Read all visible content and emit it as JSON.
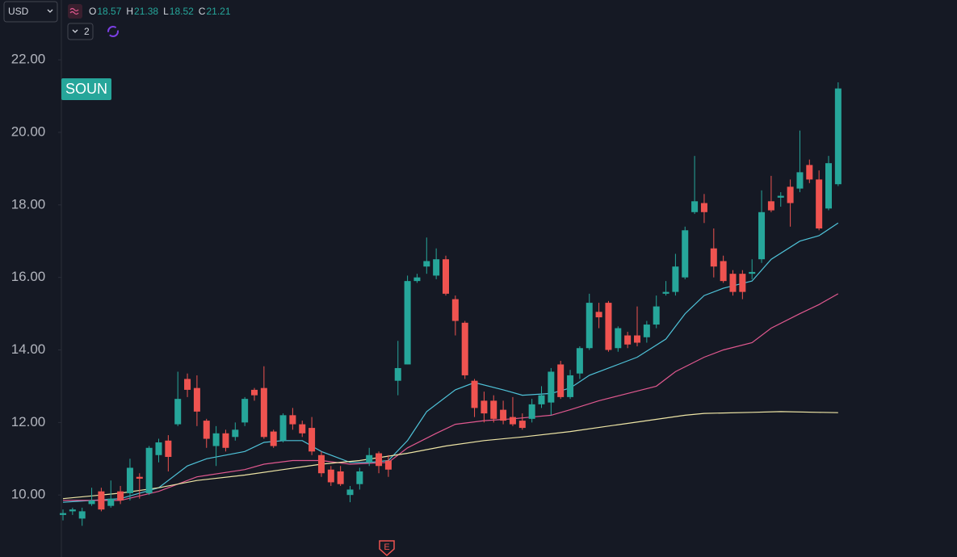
{
  "chart_data": {
    "type": "candlestick",
    "currency": "USD",
    "symbol": "SOUN",
    "ohlc_labels": [
      "O",
      "H",
      "L",
      "C"
    ],
    "indicator_count": 2,
    "earnings_marker": "E",
    "up_color": "#26a69a",
    "down_color": "#ef5350",
    "ylim": [
      8.29,
      23.65
    ],
    "yticks": [
      {
        "value": 10,
        "label": "10.00"
      },
      {
        "value": 12,
        "label": "12.00"
      },
      {
        "value": 14,
        "label": "14.00"
      },
      {
        "value": 16,
        "label": "16.00"
      },
      {
        "value": 18,
        "label": "18.00"
      },
      {
        "value": 20,
        "label": "20.00"
      },
      {
        "value": 22,
        "label": "22.00"
      }
    ],
    "open": [
      9.45,
      9.55,
      9.35,
      9.75,
      10.1,
      9.7,
      10.1,
      10.05,
      10.5,
      10.05,
      11.1,
      11.5,
      11.95,
      13.2,
      12.95,
      12.05,
      11.35,
      11.7,
      11.6,
      12.0,
      12.9,
      12.95,
      11.75,
      11.5,
      12.2,
      11.95,
      11.85,
      11.1,
      10.7,
      10.65,
      10.0,
      10.3,
      10.9,
      11.15,
      10.95,
      13.15,
      13.6,
      15.9,
      16.3,
      16.05,
      16.5,
      15.4,
      14.75,
      13.15,
      12.6,
      12.6,
      12.35,
      12.15,
      12.05,
      12.1,
      12.5,
      12.55,
      13.6,
      12.7,
      13.35,
      14.05,
      15.05,
      15.3,
      14.05,
      14.4,
      14.4,
      14.35,
      14.7,
      15.55,
      15.6,
      16.0,
      17.8,
      18.05,
      16.8,
      16.45,
      16.1,
      16.1,
      16.1,
      16.5,
      18.1,
      18.2,
      18.5,
      18.45,
      19.1,
      18.7,
      17.9,
      18.57
    ],
    "high": [
      9.6,
      9.65,
      9.65,
      10.2,
      10.2,
      10.4,
      10.25,
      11.0,
      10.6,
      11.35,
      11.55,
      11.65,
      13.4,
      13.35,
      13.3,
      12.1,
      11.9,
      11.8,
      12.0,
      12.7,
      12.95,
      13.55,
      11.8,
      12.25,
      12.4,
      12.05,
      12.15,
      11.2,
      10.8,
      10.8,
      10.25,
      10.75,
      11.3,
      11.2,
      11.1,
      14.25,
      16.05,
      16.1,
      17.1,
      16.8,
      16.6,
      15.5,
      14.8,
      13.2,
      12.85,
      12.75,
      12.6,
      12.7,
      12.25,
      12.65,
      13.0,
      13.5,
      13.7,
      13.45,
      14.1,
      15.55,
      15.3,
      15.35,
      14.65,
      14.5,
      15.2,
      14.8,
      15.5,
      15.9,
      16.65,
      17.4,
      19.35,
      18.3,
      17.35,
      16.6,
      16.2,
      16.2,
      16.5,
      18.4,
      18.8,
      18.35,
      18.7,
      20.05,
      19.25,
      18.95,
      19.35,
      21.38
    ],
    "low": [
      9.3,
      9.45,
      9.15,
      9.7,
      9.55,
      9.65,
      9.75,
      9.85,
      9.9,
      10.0,
      10.9,
      10.65,
      11.9,
      12.7,
      11.9,
      11.3,
      10.8,
      11.2,
      11.5,
      11.9,
      12.6,
      11.55,
      11.3,
      11.45,
      11.8,
      11.6,
      11.1,
      10.5,
      10.25,
      10.25,
      9.8,
      10.15,
      10.8,
      10.6,
      10.5,
      12.75,
      13.6,
      15.85,
      16.1,
      15.95,
      15.5,
      14.4,
      13.2,
      12.15,
      12.0,
      12.0,
      11.95,
      11.9,
      11.8,
      12.0,
      12.4,
      12.2,
      12.65,
      12.65,
      13.2,
      14.0,
      14.6,
      13.95,
      13.95,
      14.05,
      14.1,
      14.2,
      14.6,
      15.5,
      15.5,
      15.95,
      17.75,
      17.5,
      16.0,
      15.85,
      15.5,
      15.4,
      15.95,
      16.4,
      17.8,
      17.95,
      17.4,
      18.35,
      18.6,
      17.3,
      17.85,
      18.52
    ],
    "close": [
      9.5,
      9.6,
      9.55,
      9.85,
      9.6,
      9.9,
      9.85,
      10.75,
      10.45,
      11.3,
      11.45,
      11.05,
      12.65,
      12.9,
      12.3,
      11.55,
      11.7,
      11.3,
      11.8,
      12.65,
      12.75,
      11.6,
      11.35,
      12.2,
      11.95,
      11.7,
      11.2,
      10.6,
      10.35,
      10.3,
      10.15,
      10.65,
      11.1,
      10.8,
      10.7,
      13.5,
      15.9,
      16.0,
      16.45,
      16.5,
      15.55,
      14.8,
      13.3,
      12.4,
      12.25,
      12.1,
      12.05,
      11.95,
      11.85,
      12.5,
      12.75,
      13.4,
      12.7,
      13.3,
      14.05,
      15.3,
      14.9,
      14.0,
      14.6,
      14.15,
      14.2,
      14.7,
      15.2,
      15.6,
      16.3,
      17.3,
      18.1,
      17.8,
      16.3,
      15.9,
      15.6,
      15.6,
      16.15,
      17.8,
      17.85,
      18.25,
      18.05,
      18.9,
      18.7,
      17.35,
      19.15,
      21.21
    ],
    "moving_averages": [
      {
        "color": "#4fc3d9",
        "x": [
          0,
          6,
          10,
          13,
          15,
          19,
          21,
          23,
          25,
          27,
          30,
          32,
          34,
          36,
          38,
          41,
          43,
          46,
          48,
          51,
          53,
          55,
          58,
          60,
          63,
          65,
          67,
          69,
          72,
          74,
          77,
          79,
          81
        ],
        "values": [
          9.8,
          9.9,
          10.2,
          10.8,
          11.0,
          11.2,
          11.45,
          11.5,
          11.5,
          11.2,
          10.9,
          10.9,
          10.95,
          11.5,
          12.3,
          12.9,
          13.1,
          12.9,
          12.75,
          12.8,
          12.95,
          13.3,
          13.6,
          13.8,
          14.3,
          15.0,
          15.5,
          15.7,
          15.9,
          16.5,
          17.0,
          17.15,
          17.5
        ]
      },
      {
        "color": "#e0588f",
        "x": [
          0,
          6,
          10,
          14,
          19,
          21,
          24,
          27,
          30,
          34,
          36,
          39,
          41,
          44,
          47,
          51,
          53,
          56,
          59,
          62,
          64,
          67,
          69,
          72,
          74,
          77,
          79,
          81
        ],
        "values": [
          9.85,
          9.85,
          10.1,
          10.5,
          10.7,
          10.85,
          10.95,
          10.95,
          10.85,
          10.9,
          11.3,
          11.7,
          11.95,
          12.05,
          12.1,
          12.2,
          12.35,
          12.6,
          12.8,
          13.0,
          13.4,
          13.8,
          14.0,
          14.2,
          14.6,
          15.0,
          15.25,
          15.55
        ]
      },
      {
        "color": "#efe6a6",
        "x": [
          0,
          6,
          10,
          14,
          19,
          23,
          27,
          31,
          36,
          40,
          44,
          48,
          53,
          57,
          61,
          65,
          67,
          72,
          75,
          79,
          81
        ],
        "values": [
          9.9,
          10.05,
          10.2,
          10.4,
          10.55,
          10.7,
          10.85,
          10.95,
          11.15,
          11.35,
          11.5,
          11.6,
          11.75,
          11.9,
          12.05,
          12.2,
          12.25,
          12.28,
          12.3,
          12.28,
          12.27
        ]
      }
    ]
  }
}
